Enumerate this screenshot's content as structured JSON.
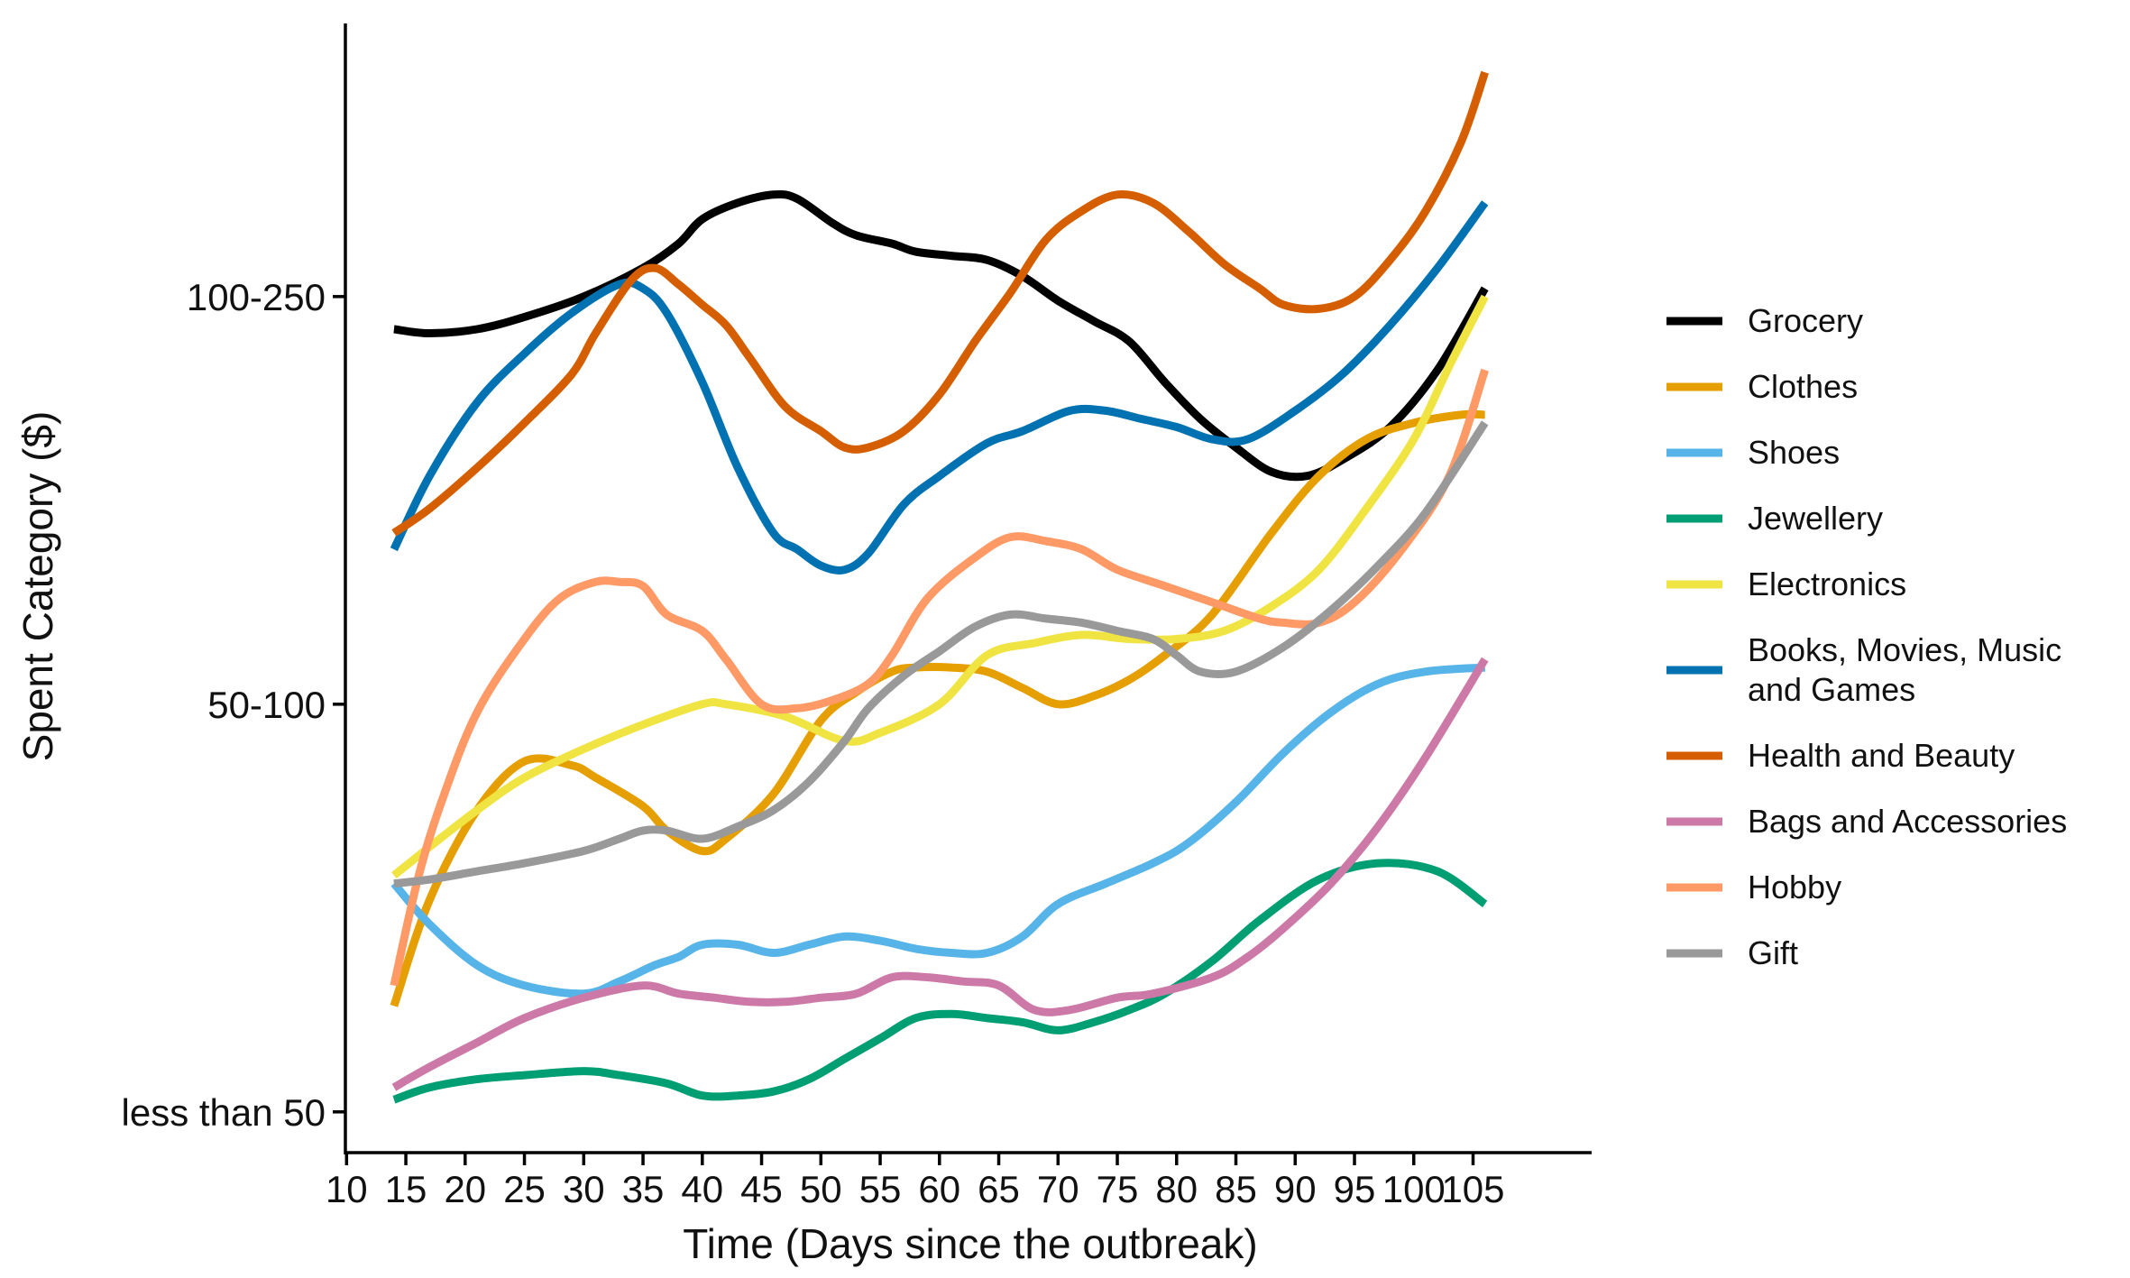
{
  "chart_data": {
    "type": "line",
    "xlabel": "Time (Days since the outbreak)",
    "ylabel": "Spent Category ($)",
    "x_ticks": [
      10,
      15,
      20,
      25,
      30,
      35,
      40,
      45,
      50,
      55,
      60,
      65,
      70,
      75,
      80,
      85,
      90,
      95,
      100,
      105
    ],
    "x_tick_labels": [
      "10",
      "15",
      "20",
      "25",
      "30",
      "35",
      "40",
      "45",
      "50",
      "55",
      "60",
      "65",
      "70",
      "75",
      "80",
      "85",
      "90",
      "95",
      "100",
      "105"
    ],
    "xlim": [
      9.9,
      115
    ],
    "y_ticks": [
      1,
      2,
      3
    ],
    "y_tick_labels": [
      "less than 50",
      "50-100",
      "100-250"
    ],
    "ylim": [
      0.9,
      3.67
    ],
    "grid": false,
    "legend_position": "right",
    "series": [
      {
        "name": "Grocery",
        "color": "#000000",
        "x": [
          14,
          17,
          21,
          25,
          30,
          35,
          38,
          40,
          43,
          46,
          48,
          51,
          53,
          56,
          58,
          61,
          64,
          67,
          70,
          73,
          76,
          79,
          82,
          85,
          88,
          91,
          94,
          98,
          102,
          106
        ],
        "y": [
          2.92,
          2.91,
          2.92,
          2.95,
          3.0,
          3.07,
          3.13,
          3.19,
          3.23,
          3.25,
          3.24,
          3.18,
          3.15,
          3.13,
          3.11,
          3.1,
          3.09,
          3.05,
          2.99,
          2.94,
          2.89,
          2.79,
          2.7,
          2.63,
          2.57,
          2.56,
          2.6,
          2.68,
          2.82,
          3.02
        ]
      },
      {
        "name": "Clothes",
        "color": "#E69F00",
        "x": [
          14,
          17,
          21,
          25,
          29,
          31,
          35,
          37,
          40,
          42,
          46,
          50,
          53,
          56,
          58,
          61,
          64,
          67,
          70,
          73,
          76,
          79,
          83,
          88,
          92,
          96,
          100,
          104,
          106
        ],
        "y": [
          1.26,
          1.52,
          1.74,
          1.86,
          1.85,
          1.82,
          1.75,
          1.69,
          1.64,
          1.67,
          1.78,
          1.96,
          2.03,
          2.08,
          2.09,
          2.09,
          2.08,
          2.04,
          2.0,
          2.02,
          2.06,
          2.12,
          2.22,
          2.42,
          2.56,
          2.65,
          2.69,
          2.71,
          2.71
        ]
      },
      {
        "name": "Shoes",
        "color": "#56B4E9",
        "x": [
          14,
          17,
          21,
          25,
          30,
          33,
          36,
          38,
          40,
          43,
          46,
          49,
          52,
          55,
          58,
          61,
          64,
          67,
          70,
          74,
          78,
          81,
          85,
          89,
          93,
          97,
          101,
          106
        ],
        "y": [
          1.56,
          1.46,
          1.36,
          1.31,
          1.29,
          1.32,
          1.36,
          1.38,
          1.41,
          1.41,
          1.39,
          1.41,
          1.43,
          1.42,
          1.4,
          1.39,
          1.39,
          1.43,
          1.51,
          1.56,
          1.61,
          1.66,
          1.76,
          1.88,
          1.98,
          2.05,
          2.08,
          2.09
        ]
      },
      {
        "name": "Jewellery",
        "color": "#009E73",
        "x": [
          14,
          17,
          21,
          25,
          30,
          33,
          37,
          40,
          43,
          46,
          49,
          52,
          55,
          58,
          61,
          64,
          67,
          70,
          73,
          76,
          79,
          83,
          87,
          92,
          97,
          102,
          106
        ],
        "y": [
          1.03,
          1.06,
          1.08,
          1.09,
          1.1,
          1.09,
          1.07,
          1.04,
          1.04,
          1.05,
          1.08,
          1.13,
          1.18,
          1.23,
          1.24,
          1.23,
          1.22,
          1.2,
          1.22,
          1.25,
          1.29,
          1.37,
          1.47,
          1.57,
          1.61,
          1.59,
          1.51
        ]
      },
      {
        "name": "Electronics",
        "color": "#F0E442",
        "x": [
          14,
          17,
          21,
          25,
          30,
          35,
          40,
          42,
          47,
          52,
          55,
          60,
          64,
          68,
          72,
          76,
          80,
          84,
          88,
          92,
          96,
          100,
          103,
          106
        ],
        "y": [
          1.58,
          1.65,
          1.74,
          1.82,
          1.89,
          1.95,
          2.0,
          2.0,
          1.97,
          1.91,
          1.93,
          2.0,
          2.12,
          2.15,
          2.17,
          2.16,
          2.16,
          2.18,
          2.24,
          2.33,
          2.48,
          2.65,
          2.83,
          3.0
        ]
      },
      {
        "name": "Books, Movies, Music and Games",
        "color": "#0072B2",
        "x": [
          14,
          17,
          21,
          25,
          29,
          33,
          35,
          37,
          40,
          43,
          46,
          48,
          50,
          52,
          54,
          57,
          60,
          64,
          67,
          71,
          74,
          77,
          80,
          83,
          86,
          90,
          94,
          98,
          102,
          106
        ],
        "y": [
          2.38,
          2.56,
          2.74,
          2.86,
          2.96,
          3.03,
          3.02,
          2.96,
          2.79,
          2.58,
          2.42,
          2.38,
          2.34,
          2.33,
          2.37,
          2.49,
          2.56,
          2.64,
          2.67,
          2.72,
          2.72,
          2.7,
          2.68,
          2.65,
          2.65,
          2.72,
          2.81,
          2.93,
          3.07,
          3.23
        ]
      },
      {
        "name": "Health and Beauty",
        "color": "#D55E00",
        "x": [
          14,
          17,
          21,
          25,
          29,
          31,
          34,
          36,
          38,
          40,
          42,
          44,
          47,
          50,
          52,
          54,
          57,
          60,
          63,
          66,
          69,
          72,
          75,
          78,
          81,
          84,
          87,
          89,
          92,
          95,
          98,
          101,
          104,
          106
        ],
        "y": [
          2.42,
          2.48,
          2.58,
          2.69,
          2.81,
          2.91,
          3.04,
          3.07,
          3.03,
          2.98,
          2.93,
          2.85,
          2.73,
          2.67,
          2.63,
          2.63,
          2.67,
          2.76,
          2.89,
          3.01,
          3.14,
          3.21,
          3.25,
          3.23,
          3.16,
          3.08,
          3.02,
          2.98,
          2.97,
          3.0,
          3.09,
          3.21,
          3.38,
          3.55
        ]
      },
      {
        "name": "Bags and Accessories",
        "color": "#CC79A7",
        "x": [
          14,
          17,
          21,
          25,
          30,
          35,
          38,
          41,
          44,
          47,
          50,
          53,
          56,
          59,
          62,
          65,
          68,
          71,
          75,
          78,
          83,
          86,
          89,
          93,
          97,
          101,
          106
        ],
        "y": [
          1.06,
          1.11,
          1.17,
          1.23,
          1.28,
          1.31,
          1.29,
          1.28,
          1.27,
          1.27,
          1.28,
          1.29,
          1.33,
          1.33,
          1.32,
          1.31,
          1.25,
          1.25,
          1.28,
          1.29,
          1.33,
          1.38,
          1.45,
          1.56,
          1.7,
          1.87,
          2.11
        ]
      },
      {
        "name": "Hobby",
        "color": "#FF9966",
        "x": [
          14,
          16,
          18,
          21,
          25,
          28,
          31,
          33,
          35,
          37,
          40,
          42,
          45,
          48,
          51,
          54,
          56,
          59,
          63,
          66,
          69,
          72,
          75,
          79,
          83,
          87,
          89,
          92,
          95,
          99,
          103,
          106
        ],
        "y": [
          1.31,
          1.57,
          1.76,
          1.98,
          2.16,
          2.26,
          2.3,
          2.3,
          2.29,
          2.22,
          2.18,
          2.11,
          2.0,
          1.99,
          2.01,
          2.05,
          2.12,
          2.26,
          2.36,
          2.41,
          2.4,
          2.38,
          2.33,
          2.29,
          2.25,
          2.21,
          2.2,
          2.2,
          2.25,
          2.38,
          2.56,
          2.82
        ]
      },
      {
        "name": "Gift",
        "color": "#999999",
        "x": [
          14,
          17,
          21,
          25,
          30,
          33,
          35,
          37,
          40,
          43,
          46,
          49,
          52,
          54,
          57,
          60,
          63,
          66,
          69,
          72,
          75,
          78,
          80,
          82,
          85,
          89,
          93,
          97,
          101,
          106
        ],
        "y": [
          1.56,
          1.57,
          1.59,
          1.61,
          1.64,
          1.67,
          1.69,
          1.69,
          1.67,
          1.7,
          1.74,
          1.81,
          1.91,
          1.99,
          2.07,
          2.13,
          2.19,
          2.22,
          2.21,
          2.2,
          2.18,
          2.16,
          2.12,
          2.08,
          2.08,
          2.14,
          2.23,
          2.34,
          2.47,
          2.69
        ]
      }
    ]
  }
}
